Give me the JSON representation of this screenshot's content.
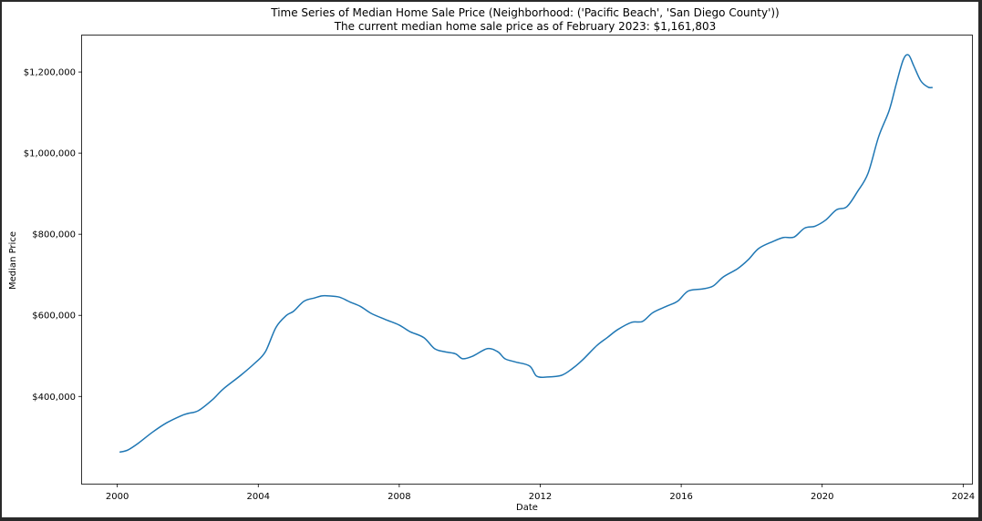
{
  "chart_data": {
    "type": "line",
    "title": "Time Series of Median Home Sale Price (Neighborhood: ('Pacific Beach', 'San Diego County'))",
    "subtitle": "The current median home sale price as of February 2023: $1,161,803",
    "xlabel": "Date",
    "ylabel": "Median Price",
    "xlim": [
      1999.0,
      2024.25
    ],
    "ylim": [
      185000,
      1290000
    ],
    "x_ticks": [
      2000,
      2004,
      2008,
      2012,
      2016,
      2020,
      2024
    ],
    "x_tick_labels": [
      "2000",
      "2004",
      "2008",
      "2012",
      "2016",
      "2020",
      "2024"
    ],
    "y_ticks": [
      400000,
      600000,
      800000,
      1000000,
      1200000
    ],
    "y_tick_labels": [
      "$400,000",
      "$600,000",
      "$800,000",
      "$1,000,000",
      "$1,200,000"
    ],
    "grid": false,
    "line_color": "#1f77b4",
    "series": [
      {
        "x": [
          2000.08,
          2000.3,
          2000.6,
          2001.0,
          2001.4,
          2001.8,
          2002.0,
          2002.3,
          2002.7,
          2003.0,
          2003.5,
          2003.9,
          2004.2,
          2004.5,
          2004.8,
          2005.0,
          2005.3,
          2005.6,
          2005.8,
          2006.0,
          2006.3,
          2006.6,
          2006.9,
          2007.2,
          2007.6,
          2008.0,
          2008.3,
          2008.7,
          2009.0,
          2009.3,
          2009.6,
          2009.8,
          2010.1,
          2010.5,
          2010.8,
          2011.0,
          2011.3,
          2011.7,
          2011.9,
          2012.2,
          2012.6,
          2012.9,
          2013.2,
          2013.6,
          2013.9,
          2014.2,
          2014.6,
          2014.9,
          2015.2,
          2015.6,
          2015.9,
          2016.2,
          2016.6,
          2016.9,
          2017.2,
          2017.6,
          2017.9,
          2018.2,
          2018.6,
          2018.9,
          2019.2,
          2019.5,
          2019.8,
          2020.1,
          2020.4,
          2020.7,
          2021.0,
          2021.3,
          2021.6,
          2021.9,
          2022.1,
          2022.3,
          2022.45,
          2022.6,
          2022.8,
          2023.0,
          2023.12
        ],
        "y": [
          263000,
          268000,
          285000,
          312000,
          335000,
          352000,
          358000,
          365000,
          392000,
          418000,
          452000,
          482000,
          510000,
          570000,
          600000,
          610000,
          635000,
          643000,
          648000,
          648000,
          645000,
          633000,
          622000,
          605000,
          590000,
          576000,
          560000,
          545000,
          518000,
          510000,
          505000,
          493000,
          500000,
          518000,
          510000,
          493000,
          485000,
          475000,
          450000,
          448000,
          452000,
          468000,
          490000,
          525000,
          545000,
          565000,
          583000,
          585000,
          607000,
          623000,
          635000,
          660000,
          665000,
          672000,
          695000,
          715000,
          737000,
          765000,
          782000,
          792000,
          793000,
          815000,
          820000,
          835000,
          860000,
          868000,
          905000,
          950000,
          1040000,
          1105000,
          1170000,
          1230000,
          1242000,
          1215000,
          1178000,
          1163000,
          1161803
        ]
      }
    ]
  }
}
